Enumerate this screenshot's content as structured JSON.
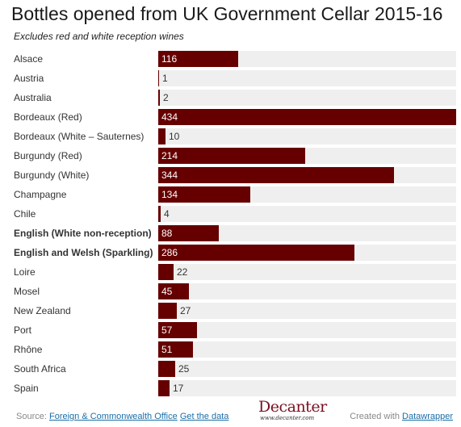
{
  "title": "Bottles opened from UK Government Cellar 2015-16",
  "subtitle": "Excludes red and white reception wines",
  "chart_data": {
    "type": "bar",
    "orientation": "horizontal",
    "title": "Bottles opened from UK Government Cellar 2015-16",
    "categories": [
      "Alsace",
      "Austria",
      "Australia",
      "Bordeaux (Red)",
      "Bordeaux (White – Sauternes)",
      "Burgundy (Red)",
      "Burgundy (White)",
      "Champagne",
      "Chile",
      "English (White non-reception)",
      "English and Welsh (Sparkling)",
      "Loire",
      "Mosel",
      "New Zealand",
      "Port",
      "Rhône",
      "South Africa",
      "Spain"
    ],
    "values": [
      116,
      1,
      2,
      434,
      10,
      214,
      344,
      134,
      4,
      88,
      286,
      22,
      45,
      27,
      57,
      51,
      25,
      17
    ],
    "value_labels": [
      "116",
      "1",
      "2",
      "434",
      "10",
      "214",
      "344",
      "134",
      "4",
      "88",
      "286",
      "22",
      "45",
      "27",
      "57",
      "51",
      "25",
      "17"
    ],
    "bold_categories": [
      "English (White non-reception)",
      "English and Welsh (Sparkling)"
    ],
    "xlim": [
      0,
      434
    ],
    "grid": false,
    "colors": {
      "bar": "#660000",
      "track": "#efefef",
      "label_inside": "#ffffff",
      "label_outside": "#333333"
    }
  },
  "footer": {
    "source_prefix": "Source:",
    "source_link": "Foreign & Commonwealth Office",
    "data_link": "Get the data",
    "logo_text": "Decanter",
    "logo_url": "www.decanter.com",
    "created_prefix": "Created with",
    "created_link": "Datawrapper"
  }
}
